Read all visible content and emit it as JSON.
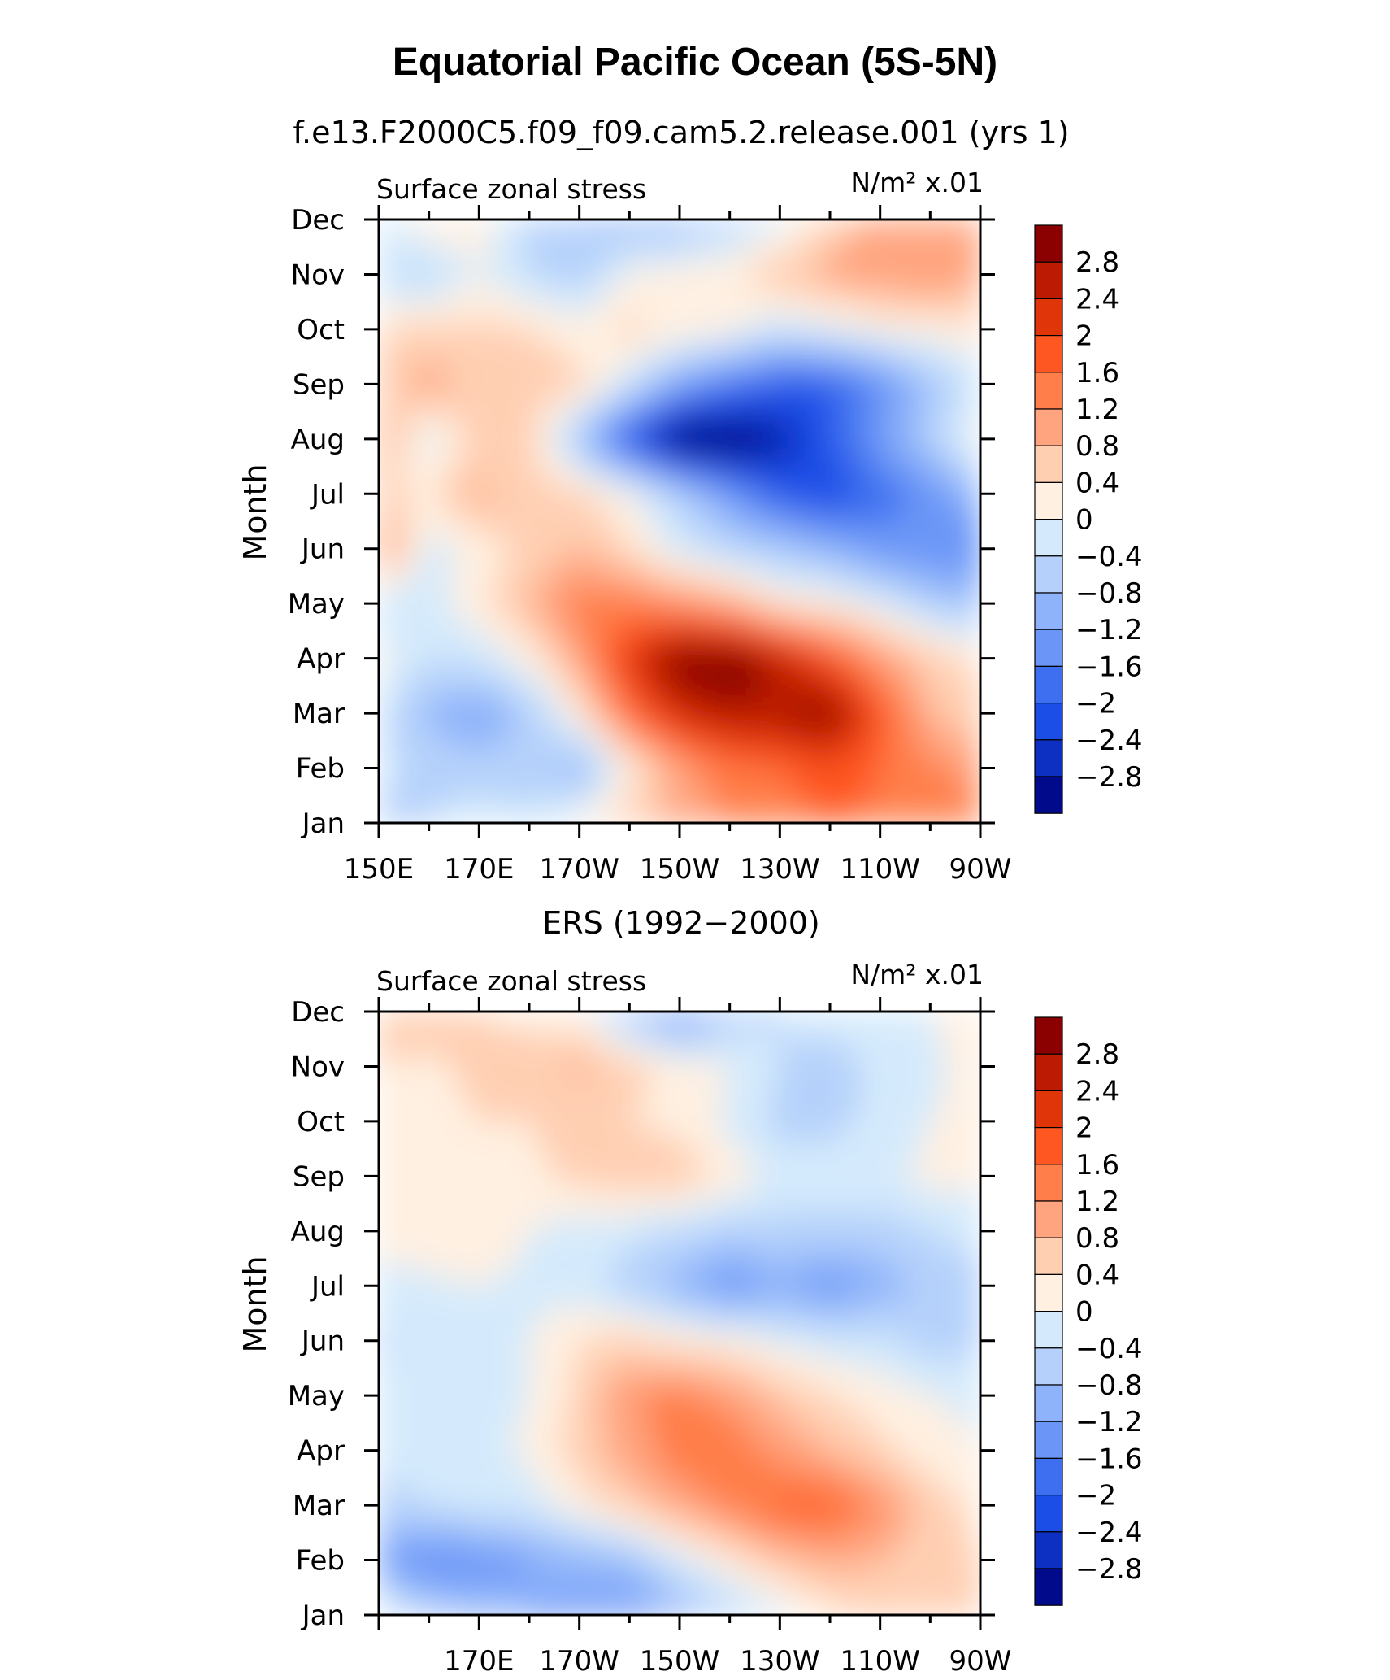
{
  "title": "Equatorial Pacific Ocean (5S-5N)",
  "colorbar": {
    "levels": [
      "2.8",
      "2.4",
      "2",
      "1.6",
      "1.2",
      "0.8",
      "0.4",
      "0",
      "−0.4",
      "−0.8",
      "−1.2",
      "−1.6",
      "−2",
      "−2.4",
      "−2.8"
    ],
    "colors": [
      "#8b0000",
      "#bd1a03",
      "#e03508",
      "#ff5722",
      "#ff7e49",
      "#ffa47f",
      "#ffcfb2",
      "#fff0e1",
      "#d4eafc",
      "#b5d1fb",
      "#8eb3fa",
      "#6b96f7",
      "#3d6ff0",
      "#1a4ee6",
      "#0d2fc2",
      "#000a8a"
    ]
  },
  "panels": [
    {
      "subtitle": "f.e13.F2000C5.f09_f09.cam5.2.release.001 (yrs 1)",
      "left_label": "Surface zonal stress",
      "right_label": "N/m² x.01",
      "ylabel": "Month",
      "x_tick_labels": [
        "150E",
        "170E",
        "170W",
        "150W",
        "130W",
        "110W",
        "90W"
      ],
      "y_tick_labels": [
        "Jan",
        "Feb",
        "Mar",
        "Apr",
        "May",
        "Jun",
        "Jul",
        "Aug",
        "Sep",
        "Oct",
        "Nov",
        "Dec"
      ]
    },
    {
      "subtitle": "ERS (1992−2000)",
      "left_label": "Surface zonal stress",
      "right_label": "N/m² x.01",
      "ylabel": "Month",
      "x_tick_labels": [
        "",
        "170E",
        "170W",
        "150W",
        "130W",
        "110W",
        "90W"
      ],
      "y_tick_labels": [
        "Jan",
        "Feb",
        "Mar",
        "Apr",
        "May",
        "Jun",
        "Jul",
        "Aug",
        "Sep",
        "Oct",
        "Nov",
        "Dec"
      ]
    }
  ],
  "chart_data": [
    {
      "type": "heatmap",
      "title": "Equatorial Pacific Ocean (5S-5N)",
      "subtitle": "f.e13.F2000C5.f09_f09.cam5.2.release.001 (yrs 1)",
      "variable": "Surface zonal stress",
      "units": "N/m² x.01",
      "ylabel": "Month",
      "x_longitudes": [
        "150E",
        "160E",
        "170E",
        "180",
        "170W",
        "160W",
        "150W",
        "140W",
        "130W",
        "120W",
        "110W",
        "100W",
        "90W"
      ],
      "y_months": [
        "Jan",
        "Feb",
        "Mar",
        "Apr",
        "May",
        "Jun",
        "Jul",
        "Aug",
        "Sep",
        "Oct",
        "Nov",
        "Dec"
      ],
      "values": [
        [
          -0.5,
          -0.4,
          -0.2,
          -0.3,
          0.2,
          0.6,
          1.0,
          1.2,
          1.4,
          1.6,
          1.5,
          1.6,
          1.4
        ],
        [
          -0.3,
          -0.5,
          -0.6,
          -0.6,
          -1.0,
          0.2,
          1.0,
          1.5,
          1.6,
          1.9,
          1.6,
          1.3,
          1.0
        ],
        [
          -0.3,
          -0.9,
          -1.2,
          -0.7,
          0.3,
          1.6,
          2.4,
          2.7,
          2.8,
          3.0,
          1.8,
          0.8,
          0.5
        ],
        [
          0.2,
          -0.4,
          -0.3,
          0.2,
          1.0,
          2.2,
          3.1,
          3.2,
          2.6,
          1.8,
          1.1,
          0.6,
          0.3
        ],
        [
          -0.4,
          -0.2,
          0.3,
          0.8,
          1.4,
          1.4,
          1.2,
          0.9,
          0.3,
          0.2,
          -0.1,
          -0.6,
          -0.8
        ],
        [
          1.3,
          -0.2,
          0.2,
          0.5,
          0.8,
          0.4,
          -0.2,
          -0.5,
          -0.7,
          -1.0,
          -1.4,
          -1.5,
          -1.6
        ],
        [
          0.4,
          0.4,
          0.9,
          0.6,
          0.5,
          0.1,
          -0.6,
          -1.3,
          -2.0,
          -2.3,
          -1.8,
          -1.5,
          -0.8
        ],
        [
          1.0,
          -0.2,
          0.6,
          0.5,
          -0.8,
          -2.2,
          -3.3,
          -3.3,
          -2.8,
          -2.0,
          -1.3,
          -0.6,
          0.2
        ],
        [
          0.6,
          1.0,
          0.6,
          0.7,
          0.5,
          -0.3,
          -1.2,
          -1.7,
          -2.0,
          -2.0,
          -1.5,
          -0.8,
          -0.2
        ],
        [
          0.4,
          0.5,
          0.5,
          0.4,
          0.2,
          0.5,
          0.3,
          0.1,
          -0.3,
          -0.1,
          0.1,
          0.2,
          0.3
        ],
        [
          -0.4,
          -0.5,
          0.0,
          -0.4,
          -0.6,
          0.1,
          0.2,
          0.3,
          0.7,
          0.9,
          1.1,
          1.1,
          1.0
        ],
        [
          -0.3,
          0.3,
          0.2,
          -0.5,
          -0.8,
          -1.0,
          -0.9,
          -0.6,
          -0.2,
          0.6,
          0.9,
          1.0,
          0.9
        ]
      ],
      "colorbar_levels": [
        -2.8,
        -2.4,
        -2.0,
        -1.6,
        -1.2,
        -0.8,
        -0.4,
        0,
        0.4,
        0.8,
        1.2,
        1.6,
        2.0,
        2.4,
        2.8
      ]
    },
    {
      "type": "heatmap",
      "subtitle": "ERS (1992−2000)",
      "variable": "Surface zonal stress",
      "units": "N/m² x.01",
      "ylabel": "Month",
      "x_longitudes": [
        "150E",
        "160E",
        "170E",
        "180",
        "170W",
        "160W",
        "150W",
        "140W",
        "130W",
        "120W",
        "110W",
        "100W",
        "90W"
      ],
      "y_months": [
        "Jan",
        "Feb",
        "Mar",
        "Apr",
        "May",
        "Jun",
        "Jul",
        "Aug",
        "Sep",
        "Oct",
        "Nov",
        "Dec"
      ],
      "values": [
        [
          0.1,
          -0.6,
          -0.8,
          -1.2,
          -1.3,
          -1.5,
          -1.0,
          -0.6,
          -0.2,
          0.3,
          0.5,
          0.5,
          0.4
        ],
        [
          -1.3,
          -1.5,
          -1.4,
          -1.2,
          -1.0,
          -0.8,
          -0.2,
          0.3,
          0.7,
          0.9,
          0.8,
          0.6,
          0.4
        ],
        [
          -0.5,
          -0.4,
          -0.3,
          -0.2,
          0.2,
          0.6,
          1.0,
          1.3,
          1.7,
          1.7,
          1.2,
          0.6,
          0.3
        ],
        [
          -0.3,
          -0.3,
          -0.2,
          0.1,
          0.6,
          1.0,
          1.4,
          1.4,
          1.1,
          0.8,
          0.5,
          0.2,
          0.0
        ],
        [
          -0.2,
          -0.3,
          -0.2,
          0.0,
          0.5,
          1.2,
          1.3,
          1.1,
          0.7,
          0.4,
          0.2,
          0.0,
          -0.1
        ],
        [
          -0.5,
          -0.2,
          -0.3,
          0.0,
          0.4,
          0.5,
          0.3,
          0.2,
          -0.1,
          -0.2,
          -0.3,
          -0.6,
          -0.5
        ],
        [
          -0.2,
          -0.1,
          0.0,
          -0.1,
          -0.2,
          -0.6,
          -1.0,
          -1.4,
          -1.1,
          -1.4,
          -1.0,
          -0.7,
          -0.6
        ],
        [
          0.2,
          0.3,
          0.3,
          0.0,
          -0.2,
          -0.3,
          -0.4,
          -0.6,
          -0.5,
          -0.5,
          -0.6,
          -0.4,
          -0.2
        ],
        [
          0.3,
          0.3,
          0.4,
          0.3,
          0.5,
          0.7,
          0.6,
          0.3,
          -0.2,
          -0.2,
          -0.1,
          0.1,
          0.1
        ],
        [
          0.2,
          0.3,
          0.4,
          0.4,
          0.6,
          0.4,
          0.3,
          -0.1,
          -0.5,
          -0.5,
          -0.3,
          0.0,
          0.1
        ],
        [
          0.4,
          0.3,
          0.5,
          0.6,
          0.9,
          0.5,
          0.3,
          0.0,
          -0.4,
          -0.6,
          -0.3,
          -0.1,
          0.2
        ],
        [
          0.5,
          0.8,
          0.4,
          0.3,
          0.1,
          -0.8,
          -1.5,
          -0.7,
          -0.4,
          -0.2,
          -0.1,
          0.0,
          0.2
        ]
      ],
      "colorbar_levels": [
        -2.8,
        -2.4,
        -2.0,
        -1.6,
        -1.2,
        -0.8,
        -0.4,
        0,
        0.4,
        0.8,
        1.2,
        1.6,
        2.0,
        2.4,
        2.8
      ]
    }
  ]
}
